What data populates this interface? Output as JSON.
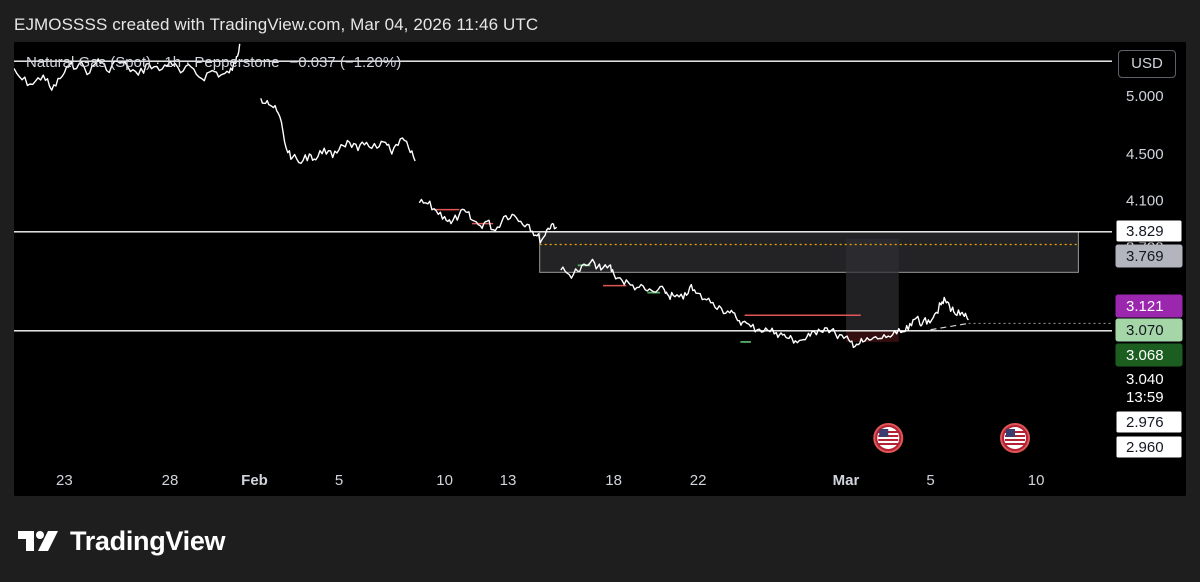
{
  "header": {
    "caption": "EJMOSSSS created with TradingView.com, Mar 04, 2026 11:46 UTC"
  },
  "legend": {
    "symbol": "Natural Gas (Spot) · 1h · Pepperstone",
    "change": "−0.037 (−1.20%)"
  },
  "currency": "USD",
  "footer": {
    "brand": "TradingView",
    "logo_icon": "tradingview-logo-icon"
  },
  "colors": {
    "background": "#000000",
    "frame": "#1e1e1e",
    "price_line": "#ffffff",
    "level_line": "#ffffff",
    "zone_fill": "#2f2f33",
    "stop_zone": "#4a1416",
    "dotted_line": "#f0a500",
    "resistance_segment": "#e05555",
    "support_segment": "#57b068",
    "tag_purple": "#9b27af",
    "tag_lightgreen": "#a5d6a7",
    "tag_darkgreen": "#1b5e20",
    "tag_gray": "#b2b5be"
  },
  "chart_data": {
    "type": "line",
    "title": "",
    "xlabel": "",
    "ylabel": "",
    "ylim": [
      2.75,
      5.35
    ],
    "x_ticks": [
      {
        "label": "23",
        "day": -8
      },
      {
        "label": "28",
        "day": -3
      },
      {
        "label": "Feb",
        "day": 1,
        "bold": true
      },
      {
        "label": "5",
        "day": 5
      },
      {
        "label": "10",
        "day": 10
      },
      {
        "label": "13",
        "day": 13
      },
      {
        "label": "18",
        "day": 18
      },
      {
        "label": "22",
        "day": 22
      },
      {
        "label": "Mar",
        "day": 29,
        "bold": true
      },
      {
        "label": "5",
        "day": 33
      },
      {
        "label": "10",
        "day": 38
      }
    ],
    "y_ticks": [
      {
        "label": "5.000",
        "value": 5.0
      },
      {
        "label": "4.500",
        "value": 4.5
      },
      {
        "label": "4.100",
        "value": 4.1
      },
      {
        "label": "3.700",
        "value": 3.7
      }
    ],
    "price_tags": [
      {
        "label": "3.829",
        "value": 3.829,
        "style": "white"
      },
      {
        "label": "3.769",
        "value": 3.769,
        "style": "gray"
      },
      {
        "label": "3.121",
        "value": 3.121,
        "style": "purple"
      },
      {
        "label": "3.070",
        "value": 3.07,
        "style": "lightgreen"
      },
      {
        "label": "3.068",
        "value": 3.068,
        "style": "darkgreen"
      },
      {
        "label": "3.040",
        "value": 3.04,
        "style": "plain"
      },
      {
        "label": "13:59",
        "value": 3.0,
        "style": "plain"
      },
      {
        "label": "2.976",
        "value": 2.976,
        "style": "white"
      },
      {
        "label": "2.960",
        "value": 2.96,
        "style": "white"
      }
    ],
    "horizontal_levels": [
      5.3,
      3.829,
      2.976
    ],
    "zones": [
      {
        "name": "supply-zone",
        "x_from": 14.5,
        "x_to": 40,
        "y_from": 3.48,
        "y_to": 3.829
      },
      {
        "name": "position-zone",
        "x_from": 29,
        "x_to": 31.5,
        "y_from": 2.976,
        "y_to": 3.769
      },
      {
        "name": "stop-zone",
        "x_from": 29,
        "x_to": 31.5,
        "y_from": 2.88,
        "y_to": 2.976
      }
    ],
    "dotted_level": {
      "value": 3.72,
      "x_from": 14.5,
      "x_to": 40
    },
    "red_segments": [
      {
        "x_from": 9.5,
        "x_to": 10.7,
        "value": 4.02
      },
      {
        "x_from": 11.3,
        "x_to": 12.3,
        "value": 3.9
      },
      {
        "x_from": 17.5,
        "x_to": 18.6,
        "value": 3.365
      },
      {
        "x_from": 24.2,
        "x_to": 29.7,
        "value": 3.11
      }
    ],
    "green_segments": [
      {
        "x_from": 16.3,
        "x_to": 16.9,
        "value": 3.54
      },
      {
        "x_from": 19.6,
        "x_to": 20.2,
        "value": 3.305
      },
      {
        "x_from": 24.0,
        "x_to": 24.5,
        "value": 2.88
      }
    ],
    "event_markers": [
      {
        "name": "us-flag-icon",
        "day": 31
      },
      {
        "name": "us-flag-icon",
        "day": 37
      }
    ],
    "series": [
      {
        "points": [
          [
            -11.0,
            5.18
          ],
          [
            -10.5,
            5.24
          ],
          [
            -10.0,
            5.14
          ],
          [
            -9.5,
            5.1
          ],
          [
            -9.0,
            5.18
          ],
          [
            -8.6,
            5.05
          ],
          [
            -8.2,
            5.15
          ],
          [
            -7.8,
            5.25
          ],
          [
            -7.3,
            5.28
          ],
          [
            -6.8,
            5.2
          ],
          [
            -6.4,
            5.32
          ],
          [
            -6.0,
            5.22
          ],
          [
            -5.5,
            5.3
          ],
          [
            -5.0,
            5.25
          ],
          [
            -4.5,
            5.18
          ],
          [
            -4.0,
            5.28
          ],
          [
            -3.5,
            5.22
          ],
          [
            -3.0,
            5.3
          ],
          [
            -2.5,
            5.2
          ],
          [
            -2.0,
            5.25
          ],
          [
            -1.5,
            5.15
          ],
          [
            -1.0,
            5.22
          ],
          [
            -0.6,
            5.18
          ],
          [
            -0.2,
            5.2
          ],
          [
            0.1,
            5.28
          ],
          [
            0.3,
            5.45
          ],
          null,
          [
            1.3,
            4.98
          ],
          [
            1.6,
            4.96
          ],
          [
            1.9,
            4.9
          ],
          [
            2.2,
            4.82
          ],
          [
            2.5,
            4.55
          ],
          [
            2.8,
            4.47
          ],
          [
            3.2,
            4.42
          ],
          [
            3.6,
            4.5
          ],
          [
            3.9,
            4.45
          ],
          [
            4.3,
            4.55
          ],
          [
            4.7,
            4.47
          ],
          [
            5.1,
            4.58
          ],
          [
            5.5,
            4.6
          ],
          [
            5.9,
            4.53
          ],
          [
            6.3,
            4.6
          ],
          [
            6.8,
            4.55
          ],
          [
            7.2,
            4.6
          ],
          [
            7.5,
            4.5
          ],
          [
            7.9,
            4.63
          ],
          [
            8.3,
            4.55
          ],
          [
            8.6,
            4.44
          ],
          null,
          [
            8.8,
            4.08
          ],
          [
            9.2,
            4.07
          ],
          [
            9.6,
            4.01
          ],
          [
            10.0,
            3.96
          ],
          [
            10.3,
            3.9
          ],
          [
            10.7,
            3.98
          ],
          [
            11.0,
            4.0
          ],
          [
            11.3,
            3.93
          ],
          [
            11.7,
            3.88
          ],
          [
            12.0,
            3.92
          ],
          [
            12.4,
            3.84
          ],
          [
            12.8,
            3.96
          ],
          [
            13.2,
            3.98
          ],
          [
            13.6,
            3.92
          ],
          [
            14.0,
            3.89
          ],
          [
            14.3,
            3.8
          ],
          [
            14.6,
            3.76
          ],
          [
            14.9,
            3.86
          ],
          [
            15.1,
            3.9
          ],
          [
            15.3,
            3.87
          ],
          null,
          [
            15.5,
            3.5
          ],
          [
            15.9,
            3.46
          ],
          [
            16.3,
            3.49
          ],
          [
            16.7,
            3.54
          ],
          [
            17.1,
            3.56
          ],
          [
            17.4,
            3.5
          ],
          [
            17.8,
            3.54
          ],
          [
            18.0,
            3.47
          ],
          [
            18.4,
            3.41
          ],
          [
            18.8,
            3.37
          ],
          [
            19.2,
            3.35
          ],
          [
            19.6,
            3.32
          ],
          [
            20.0,
            3.31
          ],
          [
            20.4,
            3.33
          ],
          [
            20.6,
            3.28
          ],
          [
            20.9,
            3.27
          ],
          [
            21.3,
            3.25
          ],
          [
            21.6,
            3.35
          ],
          [
            21.9,
            3.3
          ],
          [
            22.3,
            3.25
          ],
          [
            22.7,
            3.22
          ],
          [
            23.1,
            3.17
          ],
          [
            23.5,
            3.13
          ],
          [
            23.8,
            3.09
          ],
          [
            24.1,
            3.05
          ],
          [
            24.5,
            3.01
          ],
          [
            24.9,
            2.99
          ],
          [
            25.3,
            2.98
          ],
          [
            25.7,
            2.96
          ],
          [
            26.0,
            2.94
          ],
          [
            26.3,
            2.91
          ],
          [
            26.6,
            2.89
          ],
          [
            27.0,
            2.9
          ],
          [
            27.3,
            2.93
          ],
          [
            27.7,
            2.99
          ],
          [
            28.1,
            3.0
          ],
          [
            28.5,
            2.95
          ],
          [
            28.9,
            2.91
          ],
          [
            29.2,
            2.88
          ],
          [
            29.5,
            2.86
          ],
          [
            29.8,
            2.88
          ],
          [
            30.2,
            2.9
          ],
          [
            30.6,
            2.91
          ],
          [
            31.0,
            2.93
          ],
          [
            31.4,
            2.95
          ],
          [
            31.8,
            2.97
          ],
          [
            32.1,
            3.02
          ],
          [
            32.4,
            3.1
          ],
          [
            32.6,
            3.03
          ],
          [
            32.9,
            3.07
          ],
          [
            33.2,
            3.12
          ],
          [
            33.5,
            3.2
          ],
          [
            33.7,
            3.24
          ],
          [
            33.9,
            3.19
          ],
          [
            34.1,
            3.14
          ],
          [
            34.4,
            3.11
          ],
          [
            34.6,
            3.1
          ],
          [
            34.8,
            3.07
          ]
        ]
      }
    ],
    "projection_dashes": [
      [
        33.0,
        2.985
      ],
      [
        34.8,
        3.04
      ]
    ]
  }
}
